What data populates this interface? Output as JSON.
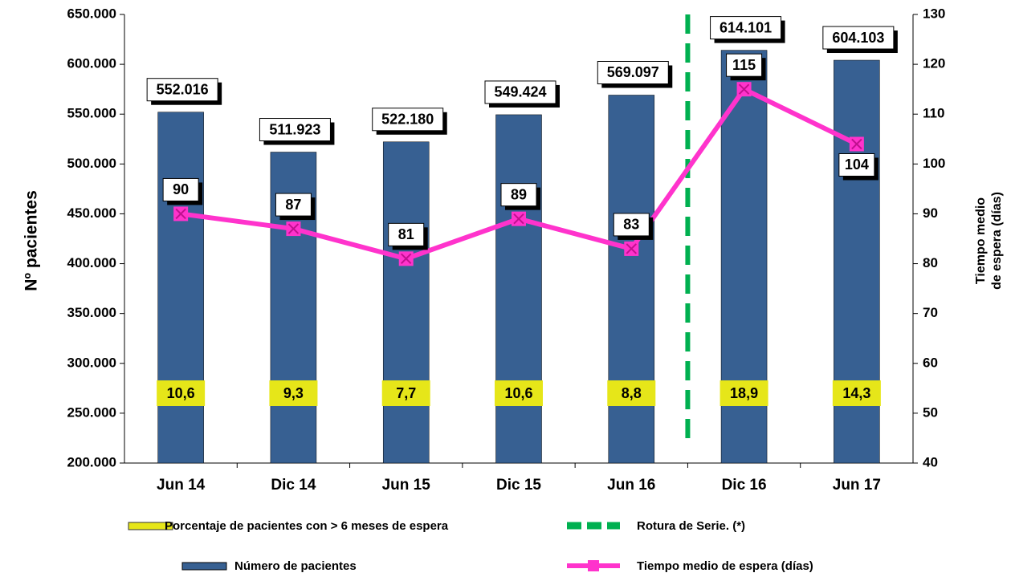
{
  "chart_data": {
    "type": "bar",
    "categories": [
      "Jun 14",
      "Dic 14",
      "Jun 15",
      "Dic 15",
      "Jun 16",
      "Dic 16",
      "Jun 17"
    ],
    "series": [
      {
        "name": "Número de pacientes",
        "type": "bar",
        "color": "#376092",
        "values": [
          552016,
          511923,
          522180,
          549424,
          569097,
          614101,
          604103
        ],
        "value_labels": [
          "552.016",
          "511.923",
          "522.180",
          "549.424",
          "569.097",
          "614.101",
          "604.103"
        ]
      },
      {
        "name": "Tiempo medio de espera (días)",
        "type": "line",
        "axis": "y2",
        "color": "#ff33cc",
        "values": [
          90,
          87,
          81,
          89,
          83,
          115,
          104
        ]
      },
      {
        "name": "Porcentaje de pacientes con > 6 meses  de espera",
        "type": "label",
        "color": "#e6e619",
        "values": [
          10.6,
          9.3,
          7.7,
          10.6,
          8.8,
          18.9,
          14.3
        ],
        "value_labels": [
          "10,6",
          "9,3",
          "7,7",
          "10,6",
          "8,8",
          "18,9",
          "14,3"
        ]
      }
    ],
    "series_break": {
      "name": "Rotura de Serie. (*)",
      "color": "#00b050",
      "x": 4.5
    },
    "y_label": "Nº pacientes",
    "y2_label": [
      "Tiempo medio",
      "de espera (días)"
    ],
    "ylim": [
      200000,
      650000
    ],
    "yticks": [
      {
        "value": 200000,
        "label": "200.000"
      },
      {
        "value": 250000,
        "label": "250.000"
      },
      {
        "value": 300000,
        "label": "300.000"
      },
      {
        "value": 350000,
        "label": "350.000"
      },
      {
        "value": 400000,
        "label": "400.000"
      },
      {
        "value": 450000,
        "label": "450.000"
      },
      {
        "value": 500000,
        "label": "500.000"
      },
      {
        "value": 550000,
        "label": "550.000"
      },
      {
        "value": 600000,
        "label": "600.000"
      },
      {
        "value": 650000,
        "label": "650.000"
      }
    ],
    "y2lim": [
      40,
      130
    ],
    "y2ticks": [
      40,
      50,
      60,
      70,
      80,
      90,
      100,
      110,
      120,
      130
    ]
  }
}
